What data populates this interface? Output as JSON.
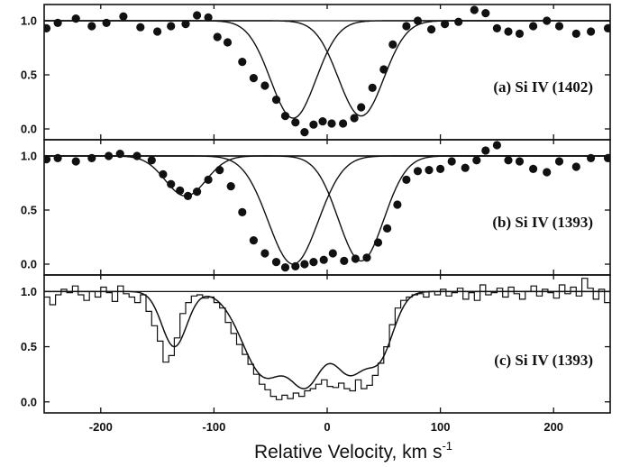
{
  "chart_data": {
    "type": "line",
    "xlabel": "Relative Velocity, km s",
    "xlabel_superscript": "-1",
    "xlim": [
      -250,
      250
    ],
    "xticks": [
      "-200",
      "-100",
      "0",
      "100",
      "200"
    ],
    "xtick_values": [
      -200,
      -100,
      0,
      100,
      200
    ],
    "panels": [
      {
        "label": "(a)  Si IV (1402)",
        "ylim": [
          -0.1,
          1.15
        ],
        "yticks": [
          "1.0",
          "0.5",
          "0.0"
        ],
        "ytick_values": [
          1.0,
          0.5,
          0.0
        ],
        "continuum": 1.0,
        "model_components": [
          {
            "center": -30,
            "depth": 0.9,
            "sigma": 20
          },
          {
            "center": 30,
            "depth": 0.88,
            "sigma": 20
          }
        ],
        "points": {
          "x": [
            -248,
            -238,
            -222,
            -208,
            -195,
            -180,
            -165,
            -150,
            -138,
            -125,
            -115,
            -105,
            -97,
            -88,
            -75,
            -65,
            -55,
            -45,
            -37,
            -28,
            -20,
            -12,
            -4,
            4,
            14,
            24,
            30,
            40,
            50,
            58,
            70,
            80,
            92,
            104,
            116,
            130,
            140,
            150,
            160,
            170,
            182,
            194,
            205,
            220,
            233,
            248
          ],
          "y": [
            0.93,
            0.98,
            1.02,
            0.95,
            0.98,
            1.04,
            0.94,
            0.9,
            0.95,
            0.97,
            1.05,
            1.03,
            0.85,
            0.8,
            0.62,
            0.47,
            0.4,
            0.27,
            0.12,
            0.06,
            -0.03,
            0.04,
            0.07,
            0.05,
            0.05,
            0.1,
            0.2,
            0.38,
            0.55,
            0.78,
            0.95,
            1.0,
            0.92,
            0.97,
            0.99,
            1.1,
            1.07,
            0.93,
            0.9,
            0.88,
            0.95,
            1.0,
            0.95,
            0.88,
            0.9,
            0.93
          ]
        }
      },
      {
        "label": "(b)  Si IV (1393)",
        "ylim": [
          -0.1,
          1.15
        ],
        "yticks": [
          "1.0",
          "0.5",
          "0.0"
        ],
        "ytick_values": [
          1.0,
          0.5,
          0.0
        ],
        "continuum": 1.0,
        "model_components": [
          {
            "center": -125,
            "depth": 0.37,
            "sigma": 18
          },
          {
            "center": -30,
            "depth": 1.0,
            "sigma": 22
          },
          {
            "center": 30,
            "depth": 0.97,
            "sigma": 20
          }
        ],
        "points": {
          "x": [
            -248,
            -238,
            -222,
            -208,
            -193,
            -183,
            -168,
            -155,
            -145,
            -138,
            -130,
            -123,
            -115,
            -105,
            -95,
            -85,
            -75,
            -65,
            -55,
            -45,
            -37,
            -28,
            -20,
            -12,
            -3,
            5,
            15,
            25,
            35,
            45,
            53,
            62,
            70,
            80,
            90,
            100,
            110,
            122,
            132,
            140,
            150,
            160,
            170,
            182,
            194,
            205,
            220,
            233,
            248
          ],
          "y": [
            0.97,
            0.98,
            0.95,
            0.98,
            1.0,
            1.02,
            1.0,
            0.96,
            0.83,
            0.74,
            0.68,
            0.63,
            0.67,
            0.78,
            0.87,
            0.72,
            0.48,
            0.22,
            0.1,
            0.02,
            -0.03,
            -0.02,
            0.0,
            0.02,
            0.04,
            0.1,
            0.03,
            0.05,
            0.06,
            0.2,
            0.33,
            0.55,
            0.78,
            0.86,
            0.87,
            0.88,
            0.95,
            0.89,
            0.96,
            1.05,
            1.1,
            0.96,
            0.95,
            0.88,
            0.85,
            0.95,
            0.9,
            0.98,
            0.98
          ]
        }
      },
      {
        "label": "(c)  Si IV (1393)",
        "ylim": [
          -0.1,
          1.15
        ],
        "yticks": [
          "1.0",
          "0.5",
          "0.0"
        ],
        "ytick_values": [
          1.0,
          0.5,
          0.0
        ],
        "continuum": 1.0,
        "model_components": [
          {
            "center": -135,
            "depth": 0.5,
            "sigma": 11
          },
          {
            "center": -55,
            "depth": 0.75,
            "sigma": 20
          },
          {
            "center": -20,
            "depth": 0.85,
            "sigma": 18
          },
          {
            "center": 20,
            "depth": 0.72,
            "sigma": 17
          },
          {
            "center": 45,
            "depth": 0.55,
            "sigma": 13
          }
        ],
        "histogram": {
          "x": [
            -250,
            -245,
            -240,
            -235,
            -230,
            -225,
            -220,
            -215,
            -210,
            -205,
            -200,
            -195,
            -190,
            -185,
            -180,
            -175,
            -170,
            -165,
            -160,
            -155,
            -150,
            -145,
            -140,
            -135,
            -130,
            -125,
            -120,
            -115,
            -110,
            -105,
            -100,
            -95,
            -90,
            -85,
            -80,
            -75,
            -70,
            -65,
            -60,
            -55,
            -50,
            -45,
            -40,
            -35,
            -30,
            -25,
            -20,
            -15,
            -10,
            -5,
            0,
            5,
            10,
            15,
            20,
            25,
            30,
            35,
            40,
            45,
            50,
            55,
            60,
            65,
            70,
            75,
            80,
            85,
            90,
            95,
            100,
            105,
            110,
            115,
            120,
            125,
            130,
            135,
            140,
            145,
            150,
            155,
            160,
            165,
            170,
            175,
            180,
            185,
            190,
            195,
            200,
            205,
            210,
            215,
            220,
            225,
            230,
            235,
            240,
            245
          ],
          "y": [
            0.95,
            0.88,
            0.97,
            1.02,
            0.99,
            1.05,
            0.97,
            0.92,
            1.0,
            0.95,
            1.04,
            0.99,
            0.91,
            1.05,
            0.98,
            0.95,
            0.9,
            0.97,
            0.82,
            0.69,
            0.55,
            0.36,
            0.42,
            0.58,
            0.8,
            0.9,
            0.96,
            0.97,
            0.94,
            0.95,
            0.9,
            0.85,
            0.72,
            0.62,
            0.52,
            0.43,
            0.34,
            0.25,
            0.16,
            0.11,
            0.05,
            0.02,
            0.06,
            0.03,
            0.08,
            0.05,
            0.1,
            0.12,
            0.16,
            0.2,
            0.14,
            0.13,
            0.17,
            0.12,
            0.1,
            0.2,
            0.12,
            0.15,
            0.24,
            0.35,
            0.5,
            0.7,
            0.85,
            0.92,
            0.95,
            0.97,
            0.98,
            0.95,
            1.0,
            0.97,
            1.02,
            0.96,
            0.99,
            1.03,
            0.93,
            0.99,
            0.92,
            1.06,
            0.97,
            0.99,
            1.03,
            0.95,
            1.04,
            0.98,
            0.93,
            1.0,
            1.05,
            0.96,
            1.02,
            0.99,
            0.94,
            1.06,
            0.98,
            1.04,
            0.96,
            1.12,
            1.03,
            0.93,
            1.02,
            0.9
          ]
        }
      }
    ]
  }
}
